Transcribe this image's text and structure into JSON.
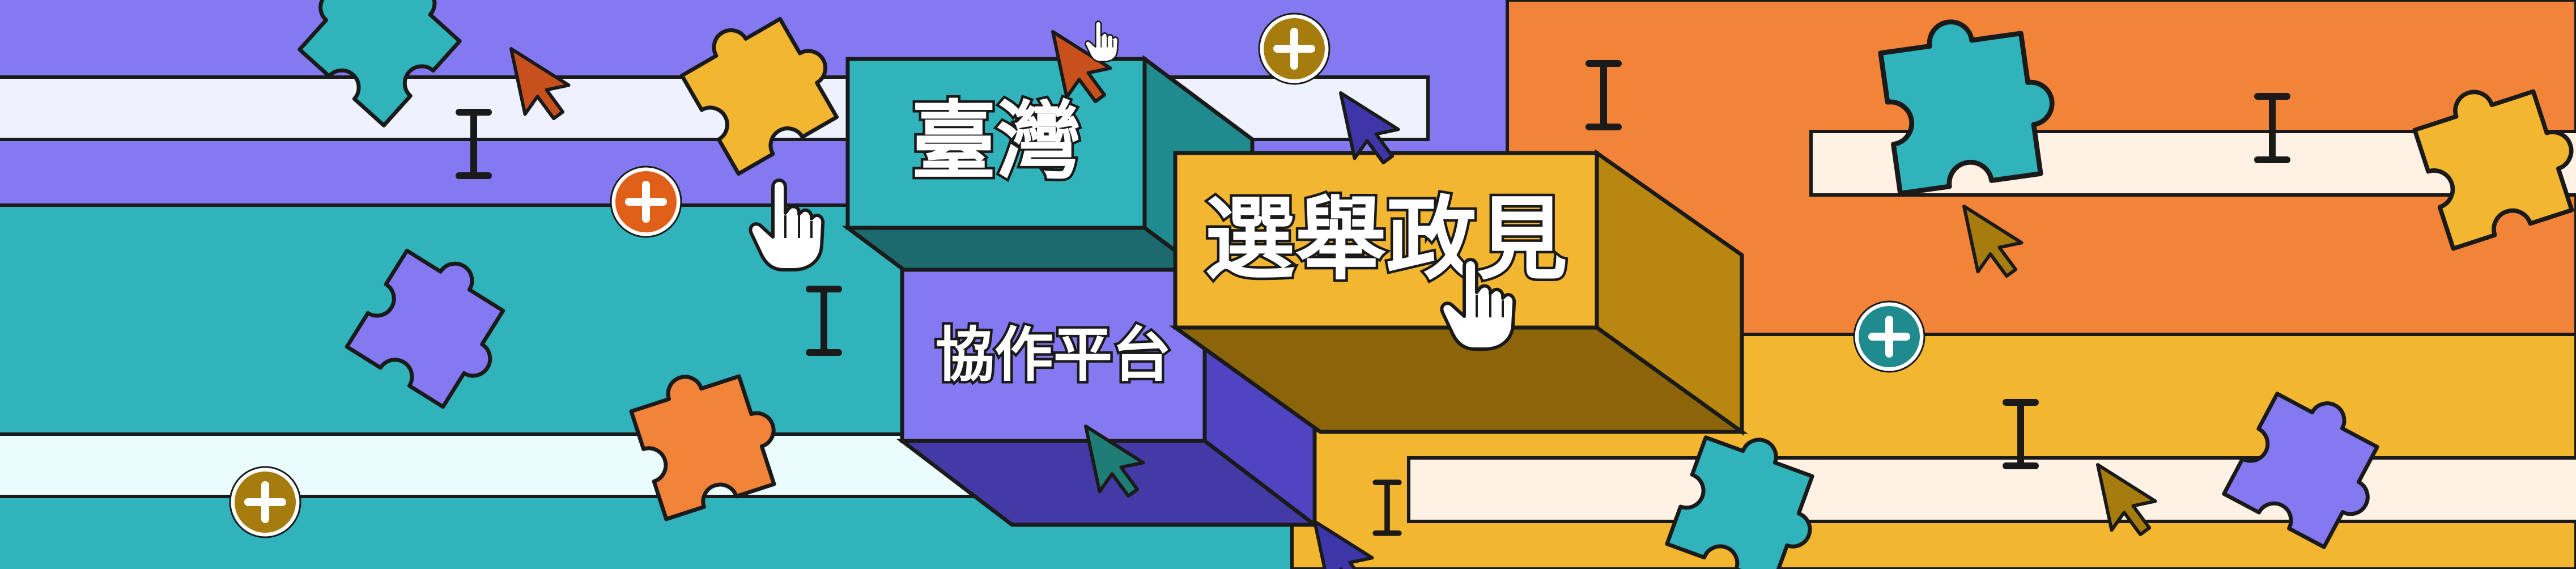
{
  "banner": {
    "title_line_1": "臺灣",
    "title_line_2": "選舉政見",
    "title_line_3": "協作平台"
  },
  "colors": {
    "purple": "#8479f1",
    "teal": "#30b3bb",
    "orange": "#f2843a",
    "yellow": "#f2b630",
    "light_stripe": "#eef2ff",
    "cream_stripe": "#fff1e4",
    "outline": "#1a1a1a"
  },
  "icons": [
    "puzzle-piece-icon",
    "mouse-cursor-icon",
    "hand-pointer-icon",
    "text-cursor-icon",
    "plus-circle-icon"
  ]
}
